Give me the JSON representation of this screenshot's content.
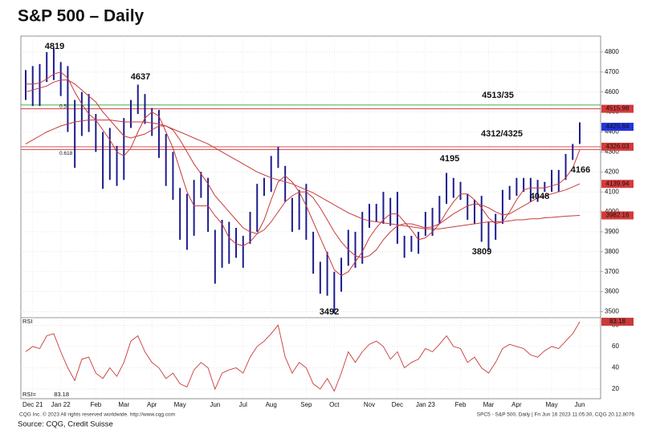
{
  "chart_data": {
    "type": "ohlc",
    "title": "S&P 500 – Daily",
    "bar_color": "#1c1c8f",
    "grid": true,
    "categories": [
      null,
      "Dec 21",
      null,
      null,
      null,
      "Jan 22",
      null,
      null,
      null,
      null,
      "Feb",
      null,
      null,
      null,
      "Mar",
      null,
      null,
      null,
      "Apr",
      null,
      null,
      null,
      "May",
      null,
      null,
      null,
      null,
      "Jun",
      null,
      null,
      null,
      "Jul",
      null,
      null,
      null,
      "Aug",
      null,
      null,
      null,
      null,
      "Sep",
      null,
      null,
      null,
      "Oct",
      null,
      null,
      null,
      null,
      "Nov",
      null,
      null,
      null,
      "Dec",
      null,
      null,
      null,
      "Jan 23",
      null,
      null,
      null,
      null,
      "Feb",
      null,
      null,
      null,
      "Mar",
      null,
      null,
      null,
      "Apr",
      null,
      null,
      null,
      null,
      "May",
      null,
      null,
      null,
      "Jun"
    ],
    "high": [
      4710,
      4730,
      4740,
      4800,
      4819,
      4750,
      4730,
      4560,
      4600,
      4590,
      4490,
      4400,
      4420,
      4330,
      4470,
      4560,
      4637,
      4590,
      4520,
      4510,
      4390,
      4300,
      4120,
      4090,
      4160,
      4200,
      4170,
      3910,
      3960,
      3950,
      3920,
      3880,
      4000,
      4140,
      4170,
      4280,
      4325,
      4230,
      4070,
      4110,
      4140,
      3900,
      3750,
      3800,
      3700,
      3770,
      3910,
      3900,
      4000,
      4040,
      4040,
      4100,
      4070,
      4100,
      3880,
      3880,
      3900,
      4000,
      4020,
      4080,
      4195,
      4170,
      4150,
      4090,
      4060,
      4080,
      3950,
      3990,
      4110,
      4130,
      4170,
      4170,
      4170,
      4160,
      4150,
      4210,
      4210,
      4290,
      4340,
      4448
    ],
    "low": [
      4560,
      4530,
      4530,
      4650,
      4660,
      4580,
      4400,
      4220,
      4380,
      4400,
      4300,
      4115,
      4160,
      4130,
      4160,
      4420,
      4490,
      4440,
      4380,
      4270,
      4130,
      4060,
      3860,
      3810,
      3880,
      4070,
      3900,
      3640,
      3720,
      3740,
      3770,
      3720,
      3840,
      3900,
      4080,
      4100,
      4220,
      4050,
      3900,
      3910,
      3860,
      3690,
      3590,
      3580,
      3492,
      3600,
      3730,
      3720,
      3740,
      3920,
      3950,
      3940,
      3930,
      3840,
      3770,
      3800,
      3790,
      3880,
      3880,
      3940,
      4040,
      4070,
      4060,
      3960,
      3940,
      3850,
      3809,
      3860,
      3940,
      4060,
      4080,
      4100,
      4050,
      4050,
      4100,
      4100,
      4100,
      4160,
      4260,
      4340
    ],
    "ylim": [
      3470,
      4880
    ],
    "yticks": [
      3500,
      3600,
      3700,
      3800,
      3900,
      4000,
      4100,
      4200,
      4300,
      4400,
      4500,
      4600,
      4700,
      4800
    ],
    "series": [
      {
        "color": "#c83a3a",
        "values": [
          4640,
          4640,
          4645,
          4665,
          4690,
          4700,
          4670,
          4600,
          4540,
          4490,
          4460,
          4410,
          4360,
          4300,
          4280,
          4320,
          4400,
          4470,
          4500,
          4480,
          4400,
          4320,
          4210,
          4100,
          4030,
          4030,
          4030,
          3980,
          3940,
          3870,
          3840,
          3830,
          3850,
          3890,
          3960,
          4060,
          4150,
          4180,
          4150,
          4100,
          4030,
          3950,
          3870,
          3790,
          3710,
          3680,
          3700,
          3750,
          3800,
          3870,
          3920,
          3960,
          3990,
          3990,
          3950,
          3910,
          3860,
          3870,
          3900,
          3940,
          4000,
          4050,
          4090,
          4090,
          4060,
          4020,
          3970,
          3940,
          3950,
          4000,
          4060,
          4110,
          4120,
          4120,
          4120,
          4130,
          4140,
          4170,
          4220,
          4310
        ]
      },
      {
        "color": "#c83a3a",
        "values": [
          4600,
          4610,
          4620,
          4630,
          4650,
          4660,
          4660,
          4640,
          4610,
          4580,
          4550,
          4500,
          4460,
          4420,
          4380,
          4370,
          4380,
          4390,
          4410,
          4430,
          4430,
          4410,
          4360,
          4300,
          4240,
          4190,
          4140,
          4080,
          4040,
          4000,
          3960,
          3920,
          3900,
          3890,
          3910,
          3950,
          4000,
          4050,
          4080,
          4100,
          4100,
          4070,
          4020,
          3960,
          3900,
          3850,
          3810,
          3780,
          3770,
          3780,
          3810,
          3860,
          3900,
          3930,
          3940,
          3940,
          3930,
          3920,
          3925,
          3940,
          3965,
          3990,
          4010,
          4030,
          4040,
          4035,
          4020,
          4000,
          3985,
          3990,
          4010,
          4030,
          4050,
          4070,
          4080,
          4090,
          4100,
          4110,
          4125,
          4139.94
        ]
      },
      {
        "color": "#c83a3a",
        "values": [
          4340,
          4360,
          4380,
          4400,
          4415,
          4430,
          4440,
          4450,
          4455,
          4460,
          4460,
          4460,
          4460,
          4455,
          4450,
          4450,
          4450,
          4450,
          4445,
          4440,
          4430,
          4415,
          4400,
          4385,
          4370,
          4355,
          4340,
          4320,
          4300,
          4280,
          4260,
          4240,
          4220,
          4200,
          4185,
          4170,
          4160,
          4150,
          4140,
          4125,
          4110,
          4095,
          4075,
          4055,
          4035,
          4015,
          3995,
          3980,
          3965,
          3955,
          3950,
          3945,
          3940,
          3935,
          3930,
          3925,
          3920,
          3915,
          3915,
          3915,
          3920,
          3925,
          3930,
          3935,
          3940,
          3945,
          3950,
          3950,
          3950,
          3955,
          3960,
          3960,
          3965,
          3965,
          3970,
          3972,
          3975,
          3978,
          3980,
          3982.16
        ]
      }
    ],
    "levels": [
      {
        "value": 4535,
        "color": "#3cb043"
      },
      {
        "value": 4515.98,
        "color": "#d43b3b"
      },
      {
        "value": 4326.03,
        "color": "#d43b3b"
      },
      {
        "value": 4312,
        "color": "#d43b3b"
      }
    ],
    "markers": [
      {
        "value": 4515.98,
        "color": "#d43b3b"
      },
      {
        "value": 4425.84,
        "color": "#2233dd"
      },
      {
        "value": 4326.03,
        "color": "#d43b3b"
      },
      {
        "value": 4139.94,
        "color": "#d43b3b"
      },
      {
        "value": 3982.16,
        "color": "#d43b3b"
      }
    ],
    "fib_labels": [
      "0.5",
      "0.618"
    ],
    "annotations": [
      "4819",
      "4637",
      "4513/35",
      "4312/4325",
      "4195",
      "4166",
      "4048",
      "3809",
      "3492"
    ],
    "rsi": {
      "label": "RSI",
      "readout_label": "RSI=",
      "color": "#c83a3a",
      "values": [
        55,
        60,
        58,
        70,
        72,
        55,
        40,
        28,
        48,
        50,
        35,
        30,
        40,
        32,
        45,
        65,
        70,
        55,
        45,
        40,
        30,
        35,
        25,
        22,
        38,
        45,
        40,
        20,
        35,
        38,
        40,
        35,
        50,
        60,
        65,
        72,
        80,
        50,
        35,
        45,
        40,
        25,
        20,
        30,
        18,
        35,
        55,
        45,
        55,
        62,
        65,
        60,
        48,
        55,
        40,
        45,
        48,
        58,
        55,
        62,
        70,
        60,
        58,
        45,
        50,
        40,
        35,
        45,
        58,
        62,
        60,
        58,
        52,
        50,
        56,
        60,
        58,
        65,
        72,
        83.18
      ],
      "ylim": [
        11,
        87
      ],
      "yticks": [
        20,
        40,
        60,
        80
      ]
    },
    "footer": {
      "left": "CQG Inc. © 2023 All rights reserved worldwide. http://www.cqg.com",
      "right": "SPC5 - S&P 500, Daily | Fri Jun 16 2023 11:05:30, CQG 20.12.8076",
      "source": "Source: CQG, Credit Suisse"
    }
  }
}
